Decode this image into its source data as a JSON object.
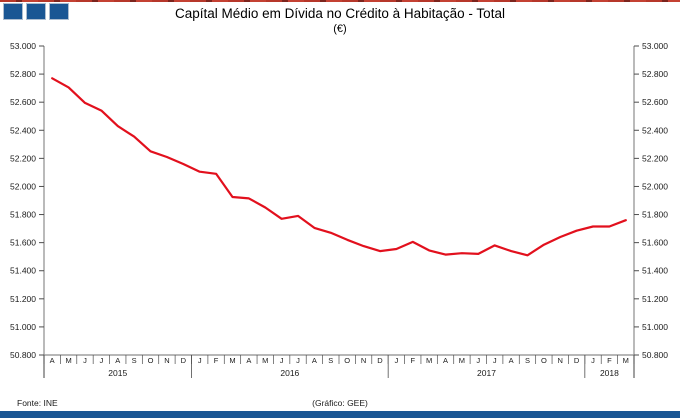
{
  "header": {
    "title": "Capítal Médio em Dívida no Crédito à Habitação - Total",
    "subtitle": "(€)"
  },
  "footer": {
    "source": "Fonte: INE",
    "credit": "(Gráfico: GEE)"
  },
  "branding": {
    "logo_squares": 3,
    "brand_blue": "#1a5694",
    "square_border": "#aebdd0"
  },
  "chart_data": {
    "type": "line",
    "title": "Capítal Médio em Dívida no Crédito à Habitação - Total",
    "subtitle": "(€)",
    "line_color": "#e2101d",
    "grid": "off",
    "legend": "none",
    "ylim": [
      50800,
      53000
    ],
    "y_tick_step": 200,
    "y_tick_labels_top_to_bottom": [
      "53.000",
      "52.800",
      "52.600",
      "52.400",
      "52.200",
      "52.000",
      "51.800",
      "51.600",
      "51.400",
      "51.200",
      "51.000",
      "50.800"
    ],
    "x_month_labels": [
      "A",
      "M",
      "J",
      "J",
      "A",
      "S",
      "O",
      "N",
      "D",
      "J",
      "F",
      "M",
      "A",
      "M",
      "J",
      "J",
      "A",
      "S",
      "O",
      "N",
      "D",
      "J",
      "F",
      "M",
      "A",
      "M",
      "J",
      "J",
      "A",
      "S",
      "O",
      "N",
      "D",
      "J",
      "F",
      "M"
    ],
    "x_year_groups": [
      {
        "label": "2015",
        "n_months": 9
      },
      {
        "label": "2016",
        "n_months": 12
      },
      {
        "label": "2017",
        "n_months": 12
      },
      {
        "label": "2018",
        "n_months": 3
      }
    ],
    "series": [
      {
        "name": "Total",
        "color": "#e2101d",
        "values": [
          52770,
          52705,
          52595,
          52540,
          52430,
          52355,
          52250,
          52210,
          52160,
          52105,
          52090,
          51925,
          51915,
          51850,
          51770,
          51790,
          51705,
          51670,
          51620,
          51575,
          51540,
          51555,
          51605,
          51545,
          51515,
          51525,
          51520,
          51580,
          51540,
          51510,
          51585,
          51640,
          51685,
          51715,
          51715,
          51760
        ]
      }
    ]
  }
}
